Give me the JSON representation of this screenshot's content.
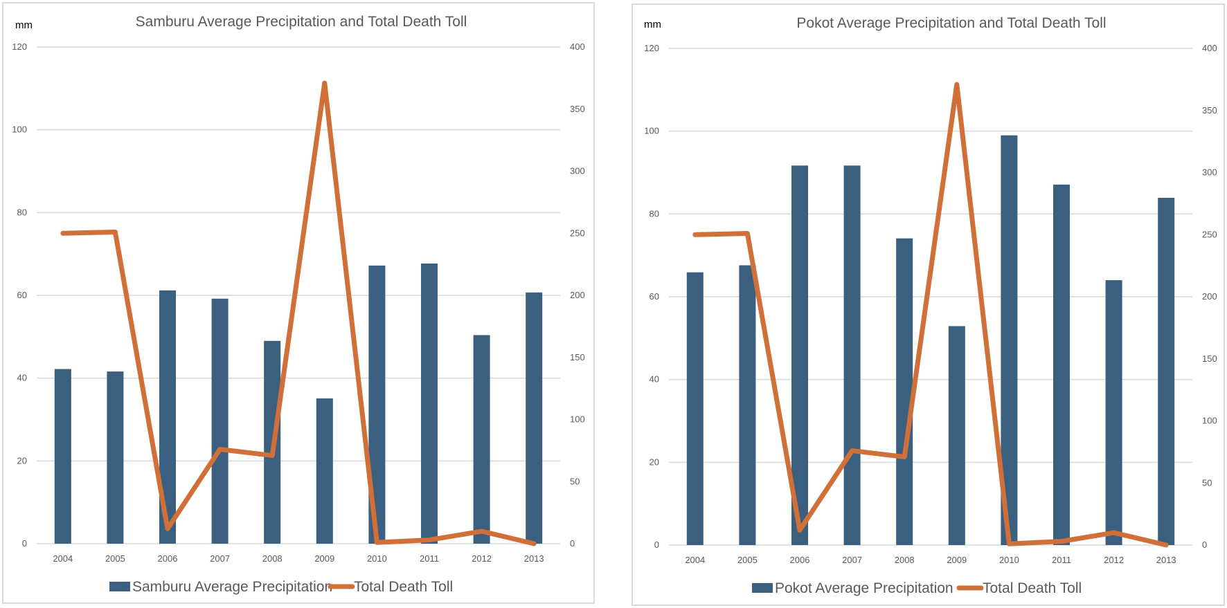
{
  "colors": {
    "bar": "#3A5F7F",
    "line": "#D07038",
    "grid": "#D9D9D9",
    "text": "#595959"
  },
  "chart_data": [
    {
      "type": "bar+line",
      "title": "Samburu Average Precipitation and Total Death Toll",
      "ylabel": "mm",
      "y2label": "",
      "xlabel": "",
      "categories": [
        "2004",
        "2005",
        "2006",
        "2007",
        "2008",
        "2009",
        "2010",
        "2011",
        "2012",
        "2013"
      ],
      "ylim": [
        0,
        120
      ],
      "y_ticks": [
        "0",
        "20",
        "40",
        "60",
        "80",
        "100",
        "120"
      ],
      "y2lim": [
        0,
        400
      ],
      "y2_ticks": [
        "0",
        "50",
        "100",
        "150",
        "200",
        "250",
        "300",
        "350",
        "400"
      ],
      "grid": true,
      "legend_position": "bottom",
      "series": [
        {
          "name": "Samburu Average Precipitation",
          "type": "bar",
          "axis": "left",
          "values": [
            42.2,
            41.6,
            61.2,
            59.2,
            49.0,
            35.1,
            67.2,
            67.7,
            50.4,
            60.7
          ]
        },
        {
          "name": "Total Death Toll",
          "type": "line",
          "axis": "right",
          "values": [
            250,
            251,
            12,
            76,
            71,
            371,
            1,
            3,
            10,
            0
          ]
        }
      ]
    },
    {
      "type": "bar+line",
      "title": "Pokot Average Precipitation and Total Death Toll",
      "ylabel": "mm",
      "y2label": "",
      "xlabel": "",
      "categories": [
        "2004",
        "2005",
        "2006",
        "2007",
        "2008",
        "2009",
        "2010",
        "2011",
        "2012",
        "2013"
      ],
      "ylim": [
        0,
        120
      ],
      "y_ticks": [
        "0",
        "20",
        "40",
        "60",
        "80",
        "100",
        "120"
      ],
      "y2lim": [
        0,
        400
      ],
      "y2_ticks": [
        "0",
        "50",
        "100",
        "150",
        "200",
        "250",
        "300",
        "350",
        "400"
      ],
      "grid": true,
      "legend_position": "bottom",
      "series": [
        {
          "name": "Pokot Average Precipitation",
          "type": "bar",
          "axis": "left",
          "values": [
            65.9,
            67.6,
            91.7,
            91.7,
            74.1,
            52.9,
            99.0,
            87.1,
            64.0,
            83.9
          ]
        },
        {
          "name": "Total Death Toll",
          "type": "line",
          "axis": "right",
          "values": [
            250,
            251,
            12,
            76,
            71,
            371,
            1,
            3,
            10,
            0
          ]
        }
      ]
    }
  ]
}
